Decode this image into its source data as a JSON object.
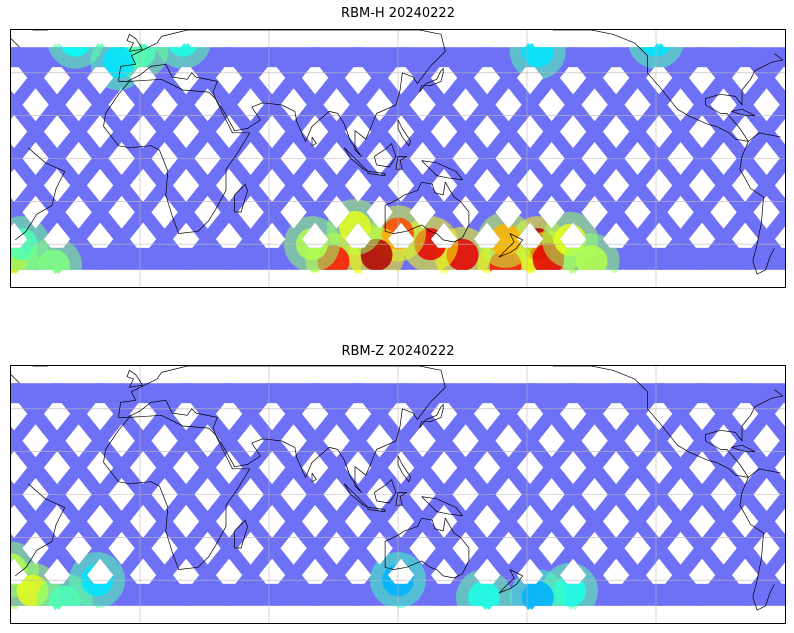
{
  "figure": {
    "panels": [
      {
        "id": "rbm-h",
        "title": "RBM-H 20240222",
        "colormap": "jet",
        "swath_base_color": "#6a6cf5",
        "hotspots": [
          {
            "lon": -175,
            "lat": -40,
            "level": 0.95
          },
          {
            "lon": -170,
            "lat": -47,
            "level": 0.9
          },
          {
            "lon": -160,
            "lat": -38,
            "level": 0.6
          },
          {
            "lon": -150,
            "lat": -48,
            "level": 0.55
          },
          {
            "lon": -60,
            "lat": -48,
            "level": 0.65
          },
          {
            "lon": -55,
            "lat": -40,
            "level": 0.45
          },
          {
            "lon": -40,
            "lat": -50,
            "level": 0.5
          },
          {
            "lon": 170,
            "lat": -50,
            "level": 0.85
          },
          {
            "lon": 150,
            "lat": -45,
            "level": 0.9
          },
          {
            "lon": 135,
            "lat": -40,
            "level": 0.9
          },
          {
            "lon": 120,
            "lat": -35,
            "level": 0.8
          },
          {
            "lon": 110,
            "lat": -45,
            "level": 0.95
          },
          {
            "lon": 100,
            "lat": -32,
            "level": 0.6
          },
          {
            "lon": 90,
            "lat": -48,
            "level": 0.85
          },
          {
            "lon": 80,
            "lat": -40,
            "level": 0.55
          },
          {
            "lon": 170,
            "lat": -38,
            "level": 0.7
          },
          {
            "lon": 0,
            "lat": 50,
            "level": 0.45
          },
          {
            "lon": 20,
            "lat": 55,
            "level": 0.4
          },
          {
            "lon": -10,
            "lat": 45,
            "level": 0.35
          },
          {
            "lon": -30,
            "lat": 55,
            "level": 0.38
          },
          {
            "lon": -120,
            "lat": 55,
            "level": 0.35
          },
          {
            "lon": -175,
            "lat": 50,
            "level": 0.35
          }
        ]
      },
      {
        "id": "rbm-z",
        "title": "RBM-Z 20240222",
        "colormap": "jet",
        "swath_base_color": "#6a6cf5",
        "hotspots": [
          {
            "lon": -160,
            "lat": -45,
            "level": 0.4
          },
          {
            "lon": -60,
            "lat": -35,
            "level": 0.55
          },
          {
            "lon": -50,
            "lat": -45,
            "level": 0.6
          },
          {
            "lon": -35,
            "lat": -50,
            "level": 0.45
          },
          {
            "lon": 160,
            "lat": -48,
            "level": 0.4
          },
          {
            "lon": 120,
            "lat": -40,
            "level": 0.3
          },
          {
            "lon": -20,
            "lat": -40,
            "level": 0.35
          },
          {
            "lon": -175,
            "lat": -48,
            "level": 0.3
          }
        ]
      }
    ],
    "projection": "PlateCarree",
    "map_extent": {
      "lon_min": -180,
      "lon_max": 180,
      "lat_min": -60,
      "lat_max": 60
    },
    "central_longitude": 120,
    "gridlines": true,
    "coastlines": true
  }
}
